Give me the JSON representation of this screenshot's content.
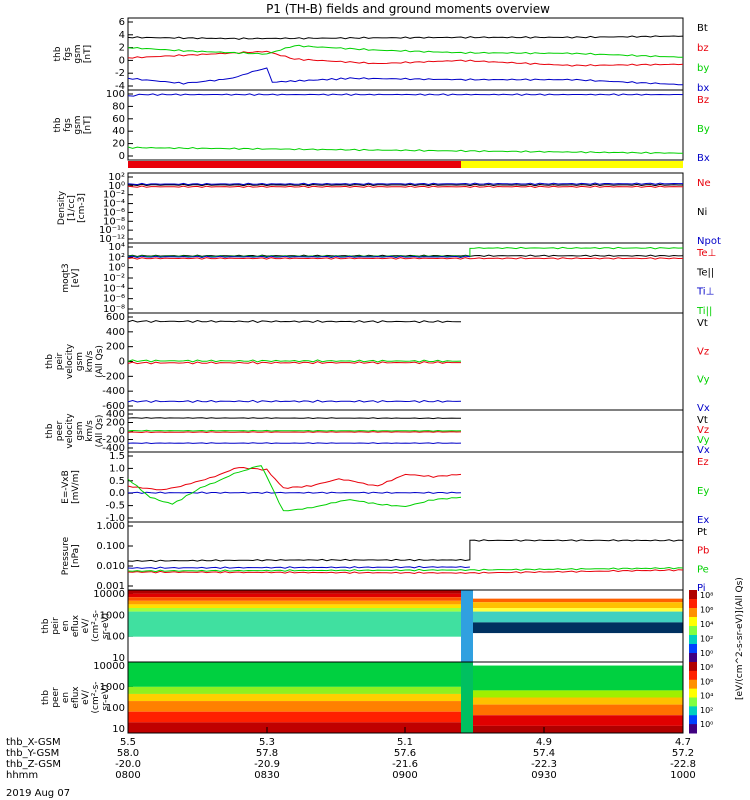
{
  "title": "P1 (TH-B) fields and ground moments overview",
  "date_label": "2019 Aug 07",
  "colors": {
    "black": "#000000",
    "red": "#e8000b",
    "green": "#00d000",
    "blue": "#0000c8",
    "yellow": "#ffff00"
  },
  "chart_data": [
    {
      "type": "line",
      "panel": "fgs",
      "ylabel": [
        "thb",
        "fgs",
        "gsm",
        "[nT]"
      ],
      "yticks": [
        "6",
        "4",
        "2",
        "0",
        "-2",
        "-4"
      ],
      "ylim": [
        -4,
        6
      ],
      "legend": [
        {
          "label": "Bt",
          "color": "black"
        },
        {
          "label": "bz",
          "color": "red"
        },
        {
          "label": "by",
          "color": "green"
        },
        {
          "label": "bx",
          "color": "blue"
        }
      ],
      "series": [
        {
          "name": "Bt",
          "color": "black",
          "x": [
            0,
            0.2,
            0.4,
            0.6,
            0.8,
            1
          ],
          "y": [
            3.6,
            3.4,
            3.5,
            3.6,
            3.6,
            3.8
          ]
        },
        {
          "name": "bz",
          "color": "red",
          "x": [
            0,
            0.1,
            0.25,
            0.3,
            0.45,
            0.6,
            0.8,
            1
          ],
          "y": [
            0.4,
            0.8,
            1.4,
            0.2,
            -0.5,
            0.0,
            -0.8,
            -0.6
          ]
        },
        {
          "name": "by",
          "color": "green",
          "x": [
            0,
            0.1,
            0.25,
            0.3,
            0.45,
            0.6,
            0.8,
            1
          ],
          "y": [
            2,
            1.5,
            1,
            2.3,
            1.6,
            1.2,
            1.1,
            0.5
          ]
        },
        {
          "name": "bx",
          "color": "blue",
          "x": [
            0,
            0.1,
            0.18,
            0.25,
            0.26,
            0.4,
            0.6,
            0.8,
            1
          ],
          "y": [
            -2.8,
            -3.6,
            -2.9,
            -1.2,
            -3.4,
            -2.8,
            -3.0,
            -3.0,
            -3.8
          ]
        }
      ]
    },
    {
      "type": "line",
      "panel": "fgs_ground",
      "ylabel": [
        "thb",
        "fgs",
        "gsm",
        "[nT]"
      ],
      "yticks": [
        "100",
        "80",
        "60",
        "40",
        "20",
        "0"
      ],
      "ylim": [
        -10,
        100
      ],
      "legend": [
        {
          "label": "Bz",
          "color": "red"
        },
        {
          "label": "By",
          "color": "green"
        },
        {
          "label": "Bx",
          "color": "blue"
        }
      ],
      "series": [
        {
          "name": "By",
          "color": "green",
          "x": [
            0,
            1
          ],
          "y": [
            5,
            -5
          ]
        },
        {
          "name": "Bx",
          "color": "blue",
          "x": [
            0,
            0.02,
            1
          ],
          "y": [
            96,
            99,
            99
          ]
        }
      ]
    },
    {
      "type": "bar",
      "panel": "mode_bar",
      "segments": [
        {
          "from": 0,
          "to": 0.6,
          "color": "red"
        },
        {
          "from": 0.6,
          "to": 1,
          "color": "yellow"
        }
      ]
    },
    {
      "type": "line",
      "panel": "density",
      "ylabel": [
        "Density",
        "[1/cc]",
        "[cm-3]"
      ],
      "yticks": [
        "10²",
        "10⁰",
        "10⁻²",
        "10⁻⁴",
        "10⁻⁶",
        "10⁻⁸",
        "10⁻¹⁰",
        "10⁻¹²"
      ],
      "ylim": [
        -12,
        2
      ],
      "log": true,
      "legend": [
        {
          "label": "Ne",
          "color": "red"
        },
        {
          "label": "Ni",
          "color": "black"
        },
        {
          "label": "Npot",
          "color": "blue"
        }
      ],
      "series": [
        {
          "name": "Ni",
          "color": "black",
          "x": [
            0,
            1
          ],
          "y": [
            0.2,
            0.2
          ]
        },
        {
          "name": "Ne",
          "color": "red",
          "x": [
            0,
            1
          ],
          "y": [
            -0.2,
            -0.2
          ]
        },
        {
          "name": "Npot",
          "color": "blue",
          "x": [
            0,
            1
          ],
          "y": [
            0.4,
            0.5
          ]
        }
      ]
    },
    {
      "type": "line",
      "panel": "temperature",
      "ylabel": [
        "moqt3",
        "[eV]"
      ],
      "yticks": [
        "10⁴",
        "10²",
        "10⁰",
        "10⁻²",
        "10⁻⁴",
        "10⁻⁶",
        "10⁻⁸"
      ],
      "ylim": [
        -8,
        4
      ],
      "log": true,
      "legend": [
        {
          "label": "Te⊥",
          "color": "red"
        },
        {
          "label": "Te||",
          "color": "black"
        },
        {
          "label": "Ti⊥",
          "color": "blue"
        },
        {
          "label": "Ti||",
          "color": "green"
        }
      ],
      "series": [
        {
          "name": "Te||",
          "color": "black",
          "x": [
            0,
            1
          ],
          "y": [
            2.3,
            2.3
          ]
        },
        {
          "name": "Ti||",
          "color": "green",
          "x": [
            0,
            0.616,
            0.616,
            1
          ],
          "y": [
            2.2,
            2.2,
            3.8,
            3.8
          ]
        },
        {
          "name": "Te⊥",
          "color": "red",
          "x": [
            0,
            0.616,
            1
          ],
          "y": [
            1.8,
            1.8,
            1.8
          ]
        },
        {
          "name": "Ti⊥",
          "color": "blue",
          "x": [
            0,
            0.616
          ],
          "y": [
            2.1,
            2.1
          ]
        }
      ]
    },
    {
      "type": "line",
      "panel": "peir_velocity",
      "ylabel": [
        "thb",
        "peir",
        "velocity",
        "gsm",
        "km/s",
        "(All Qs)"
      ],
      "yticks": [
        "600",
        "400",
        "200",
        "0",
        "-200",
        "-400",
        "-600"
      ],
      "ylim": [
        -620,
        620
      ],
      "legend": [
        {
          "label": "Vt",
          "color": "black"
        },
        {
          "label": "Vz",
          "color": "red"
        },
        {
          "label": "Vy",
          "color": "green"
        },
        {
          "label": "Vx",
          "color": "blue"
        }
      ],
      "series": [
        {
          "name": "Vt",
          "color": "black",
          "x": [
            0,
            0.6
          ],
          "y": [
            560,
            555
          ]
        },
        {
          "name": "Vy",
          "color": "green",
          "x": [
            0,
            0.6
          ],
          "y": [
            10,
            5
          ]
        },
        {
          "name": "Vz",
          "color": "red",
          "x": [
            0,
            0.6
          ],
          "y": [
            -20,
            -15
          ]
        },
        {
          "name": "Vx",
          "color": "blue",
          "x": [
            0,
            0.6
          ],
          "y": [
            -555,
            -555
          ]
        }
      ]
    },
    {
      "type": "line",
      "panel": "peer_velocity",
      "ylabel": [
        "thb",
        "peer",
        "velocity",
        "gsm",
        "km/s",
        "(All Qs)"
      ],
      "yticks": [
        "400",
        "200",
        "0",
        "-200",
        "-400"
      ],
      "ylim": [
        -560,
        560
      ],
      "legend": [
        {
          "label": "Vt",
          "color": "black"
        },
        {
          "label": "Vz",
          "color": "red"
        },
        {
          "label": "Vy",
          "color": "green"
        },
        {
          "label": "Vx",
          "color": "blue"
        }
      ],
      "series": [
        {
          "name": "Vt",
          "color": "black",
          "x": [
            0,
            0.6
          ],
          "y": [
            430,
            420
          ]
        },
        {
          "name": "Vy",
          "color": "green",
          "x": [
            0,
            0.6
          ],
          "y": [
            10,
            5
          ]
        },
        {
          "name": "Vz",
          "color": "red",
          "x": [
            0,
            0.6
          ],
          "y": [
            -40,
            -30
          ]
        },
        {
          "name": "Vx",
          "color": "blue",
          "x": [
            0,
            0.6
          ],
          "y": [
            -400,
            -400
          ]
        }
      ]
    },
    {
      "type": "line",
      "panel": "efield",
      "ylabel": [
        "E=-VxB",
        "[mV/m]"
      ],
      "yticks": [
        "1.5",
        "1.0",
        "0.5",
        "0.0",
        "-0.5",
        "-1.0"
      ],
      "ylim": [
        -1.1,
        1.6
      ],
      "legend": [
        {
          "label": "Ez",
          "color": "red"
        },
        {
          "label": "Ey",
          "color": "green"
        },
        {
          "label": "Ex",
          "color": "blue"
        }
      ],
      "series": [
        {
          "name": "Ex",
          "color": "blue",
          "x": [
            0,
            0.6
          ],
          "y": [
            0,
            0
          ]
        },
        {
          "name": "Ez",
          "color": "red",
          "x": [
            0,
            0.06,
            0.13,
            0.2,
            0.25,
            0.28,
            0.33,
            0.38,
            0.45,
            0.5,
            0.55,
            0.6
          ],
          "y": [
            0.3,
            0.1,
            0.5,
            1.1,
            1.0,
            0.2,
            0.3,
            0.6,
            0.3,
            0.8,
            0.7,
            0.8
          ]
        },
        {
          "name": "Ey",
          "color": "green",
          "x": [
            0,
            0.04,
            0.08,
            0.13,
            0.2,
            0.24,
            0.28,
            0.34,
            0.4,
            0.45,
            0.5,
            0.55,
            0.6
          ],
          "y": [
            0.6,
            -0.2,
            -0.5,
            0.2,
            0.9,
            1.2,
            -0.8,
            -0.6,
            -0.3,
            -0.5,
            -0.6,
            -0.3,
            -0.2
          ]
        }
      ]
    },
    {
      "type": "line",
      "panel": "pressure",
      "ylabel": [
        "Pressure",
        "[nPa]"
      ],
      "yticks": [
        "1.000",
        "0.100",
        "0.010",
        "0.001"
      ],
      "ylim": [
        -3,
        0
      ],
      "log": true,
      "legend": [
        {
          "label": "Pt",
          "color": "black"
        },
        {
          "label": "Pb",
          "color": "red"
        },
        {
          "label": "Pe",
          "color": "green"
        },
        {
          "label": "Pi",
          "color": "blue"
        }
      ],
      "series": [
        {
          "name": "Pt",
          "color": "black",
          "x": [
            0,
            0.3,
            0.616,
            0.616,
            1
          ],
          "y": [
            -1.75,
            -1.7,
            -1.7,
            -0.72,
            -0.72
          ]
        },
        {
          "name": "Pi",
          "color": "blue",
          "x": [
            0,
            0.616
          ],
          "y": [
            -2.1,
            -2.05
          ]
        },
        {
          "name": "Pb",
          "color": "red",
          "x": [
            0,
            0.616,
            1
          ],
          "y": [
            -2.3,
            -2.35,
            -2.2
          ]
        },
        {
          "name": "Pe",
          "color": "green",
          "x": [
            0,
            0.616,
            1
          ],
          "y": [
            -2.25,
            -2.2,
            -2.1
          ]
        }
      ]
    },
    {
      "type": "heatmap",
      "panel": "peir_spectrogram",
      "ylabel": [
        "thb",
        "peir",
        "en",
        "eflux",
        "eV/",
        "(cm²-s-",
        "sr-eV)"
      ],
      "yticks": [
        "10000",
        "1000",
        "100",
        "10"
      ],
      "ylim": [
        5,
        30000
      ],
      "log": true,
      "colorbar": {
        "ticks": [
          "10⁸",
          "10⁶",
          "10⁴",
          "10²",
          "10⁰"
        ],
        "label": "eV/(cm^2-s-sr-eV)"
      }
    },
    {
      "type": "heatmap",
      "panel": "peer_spectrogram",
      "ylabel": [
        "thb",
        "peer",
        "en",
        "eflux",
        "eV/",
        "(cm²-s-",
        "sr-eV)"
      ],
      "yticks": [
        "10000",
        "1000",
        "100",
        "10"
      ],
      "ylim": [
        5,
        30000
      ],
      "log": true,
      "colorbar": {
        "ticks": [
          "10⁸",
          "10⁶",
          "10⁴",
          "10²",
          "10⁰"
        ],
        "label": "eV/(cm^2-s-sr-eV)"
      }
    }
  ],
  "colorbar_label": "[eV/(cm^2-s-sr-eV)]",
  "colorbar_label2": "(All Qs)",
  "xaxis": {
    "rows": [
      {
        "label": "thb_X-GSM",
        "values": [
          "5.5",
          "5.3",
          "5.1",
          "4.9",
          "4.7"
        ]
      },
      {
        "label": "thb_Y-GSM",
        "values": [
          "58.0",
          "57.8",
          "57.6",
          "57.4",
          "57.2"
        ]
      },
      {
        "label": "thb_Z-GSM",
        "values": [
          "-20.0",
          "-20.9",
          "-21.6",
          "-22.3",
          "-22.8"
        ]
      },
      {
        "label": "hhmm",
        "values": [
          "0800",
          "0830",
          "0900",
          "0930",
          "1000"
        ]
      }
    ]
  }
}
